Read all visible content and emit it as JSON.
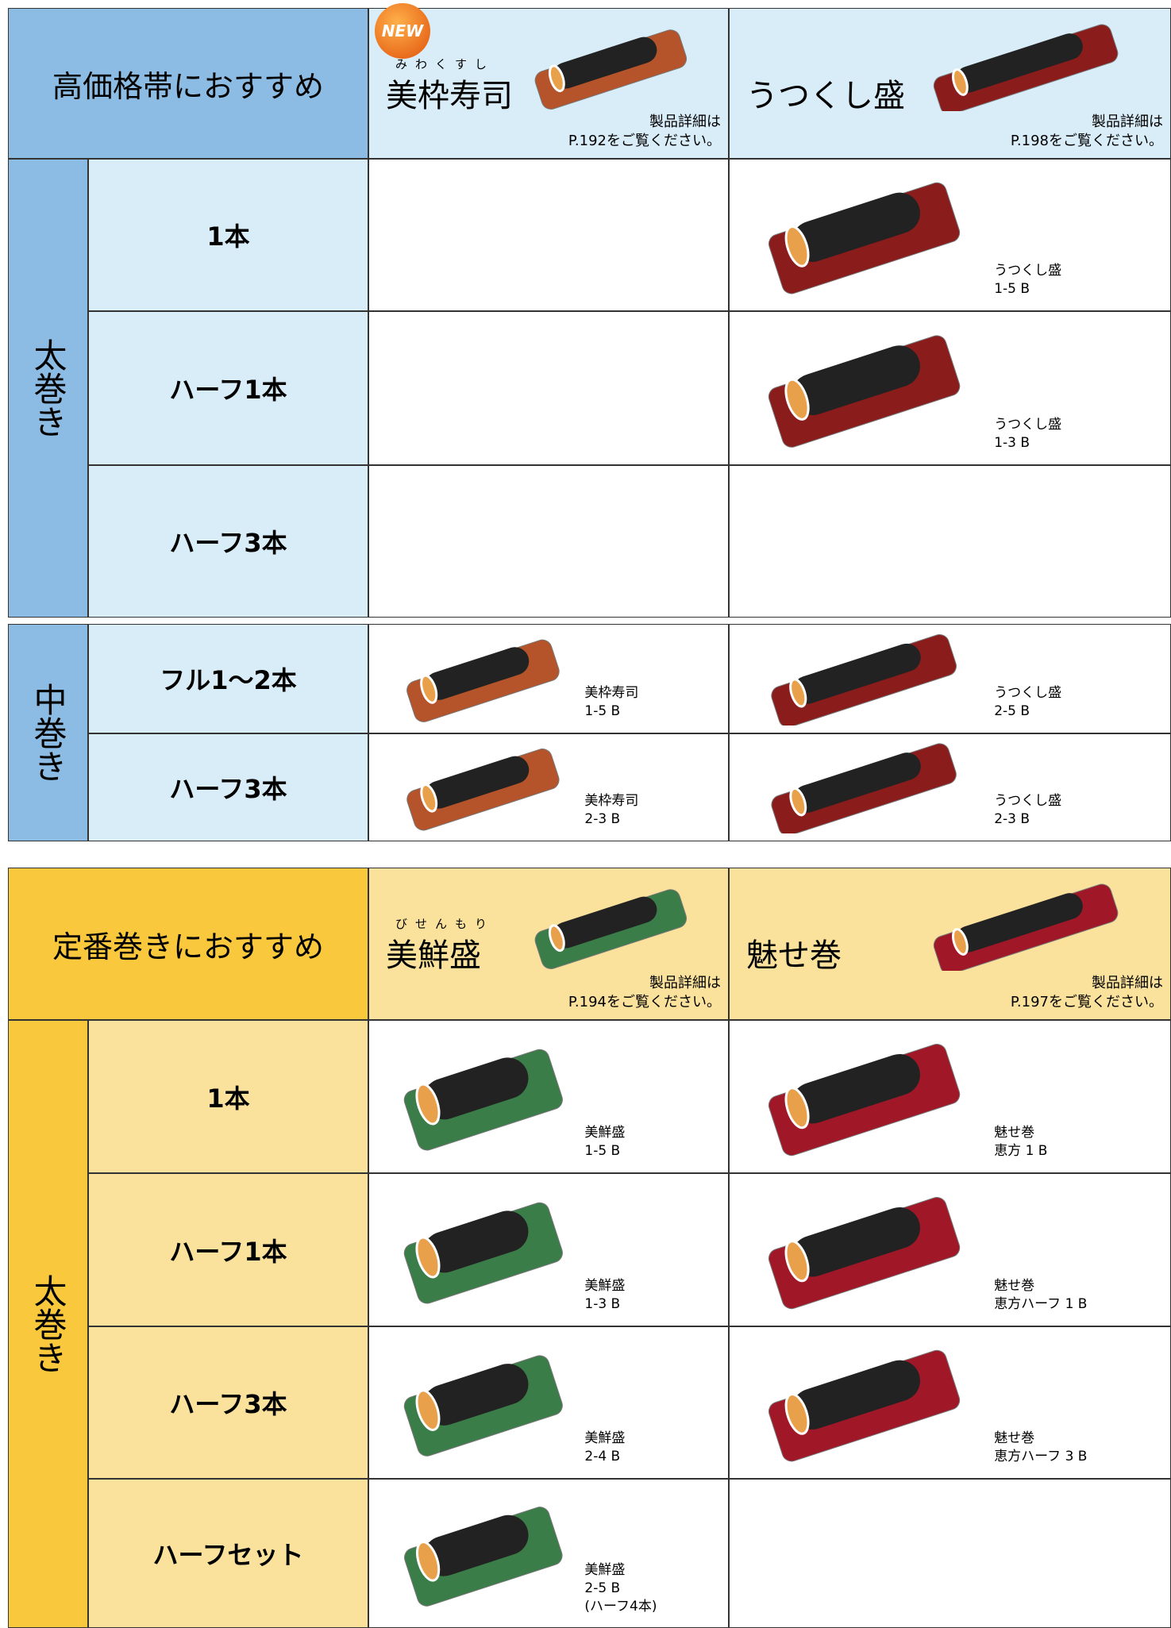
{
  "sections": [
    {
      "title": "高価格帯におすすめ",
      "products": [
        {
          "badge": "NEW",
          "ruby": "みわくすし",
          "name": "美枠寿司",
          "note": "製品詳細は",
          "page": "P.192をご覧ください。"
        },
        {
          "name": "うつくし盛",
          "note": "製品詳細は",
          "page": "P.198をご覧ください。"
        }
      ],
      "groups": [
        {
          "label": "太巻き",
          "rows": [
            {
              "label": "1本",
              "cells": [
                null,
                {
                  "name": "うつくし盛",
                  "code": "1-5 B"
                }
              ]
            },
            {
              "label": "ハーフ1本",
              "cells": [
                null,
                {
                  "name": "うつくし盛",
                  "code": "1-3 B"
                }
              ]
            },
            {
              "label": "ハーフ3本",
              "cells": [
                null,
                null
              ]
            }
          ]
        },
        {
          "label": "中巻き",
          "rows": [
            {
              "label": "フル1～2本",
              "cells": [
                {
                  "name": "美枠寿司",
                  "code": "1-5 B"
                },
                {
                  "name": "うつくし盛",
                  "code": "2-5 B"
                }
              ]
            },
            {
              "label": "ハーフ3本",
              "cells": [
                {
                  "name": "美枠寿司",
                  "code": "2-3 B"
                },
                {
                  "name": "うつくし盛",
                  "code": "2-3 B"
                }
              ]
            }
          ]
        }
      ]
    },
    {
      "title": "定番巻きにおすすめ",
      "products": [
        {
          "ruby": "びせんもり",
          "name": "美鮮盛",
          "note": "製品詳細は",
          "page": "P.194をご覧ください。"
        },
        {
          "name": "魅せ巻",
          "note": "製品詳細は",
          "page": "P.197をご覧ください。"
        }
      ],
      "groups": [
        {
          "label": "太巻き",
          "rows": [
            {
              "label": "1本",
              "cells": [
                {
                  "name": "美鮮盛",
                  "code": "1-5 B"
                },
                {
                  "name": "魅せ巻",
                  "code": "恵方 1 B"
                }
              ]
            },
            {
              "label": "ハーフ1本",
              "cells": [
                {
                  "name": "美鮮盛",
                  "code": "1-3 B"
                },
                {
                  "name": "魅せ巻",
                  "code": "恵方ハーフ 1 B"
                }
              ]
            },
            {
              "label": "ハーフ3本",
              "cells": [
                {
                  "name": "美鮮盛",
                  "code": "2-4 B"
                },
                {
                  "name": "魅せ巻",
                  "code": "恵方ハーフ 3 B"
                }
              ]
            },
            {
              "label": "ハーフセット",
              "cells": [
                {
                  "name": "美鮮盛",
                  "code": "2-5 B",
                  "extra": "(ハーフ4本)"
                },
                null
              ]
            }
          ]
        }
      ]
    }
  ]
}
